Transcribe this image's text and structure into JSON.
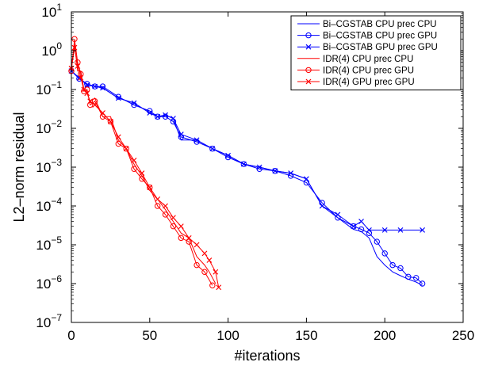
{
  "chart_data": {
    "type": "line",
    "title": "",
    "xlabel": "#iterations",
    "ylabel": "L2–norm residual",
    "xlim": [
      0,
      250
    ],
    "ylim": [
      1e-07,
      10
    ],
    "yscale": "log",
    "x_ticks": [
      "0",
      "50",
      "100",
      "150",
      "200",
      "250"
    ],
    "y_ticks": [
      {
        "base": "10",
        "exp": "1"
      },
      {
        "base": "10",
        "exp": "0"
      },
      {
        "base": "10",
        "exp": "−1"
      },
      {
        "base": "10",
        "exp": "−2"
      },
      {
        "base": "10",
        "exp": "−3"
      },
      {
        "base": "10",
        "exp": "−4"
      },
      {
        "base": "10",
        "exp": "−5"
      },
      {
        "base": "10",
        "exp": "−6"
      },
      {
        "base": "10",
        "exp": "−7"
      }
    ],
    "grid": false,
    "legend_position": "top-right",
    "series": [
      {
        "name": "Bi–CGSTAB CPU prec CPU",
        "color": "#0000ff",
        "marker": "none",
        "x": [
          0,
          5,
          10,
          15,
          20,
          30,
          40,
          50,
          55,
          60,
          65,
          70,
          80,
          90,
          100,
          110,
          120,
          130,
          140,
          150,
          160,
          170,
          180,
          185,
          190,
          195,
          200,
          205,
          210,
          215,
          220,
          224
        ],
        "y": [
          0.3,
          0.2,
          0.13,
          0.12,
          0.11,
          0.06,
          0.045,
          0.025,
          0.02,
          0.022,
          0.018,
          0.005,
          0.005,
          0.003,
          0.002,
          0.0012,
          0.001,
          0.0008,
          0.0007,
          0.0005,
          0.0001,
          5e-05,
          2.5e-05,
          2.2e-05,
          1.5e-05,
          5e-06,
          3e-06,
          2e-06,
          1.6e-06,
          1.3e-06,
          1.1e-06,
          9e-07
        ]
      },
      {
        "name": "Bi–CGSTAB CPU prec GPU",
        "color": "#0000ff",
        "marker": "circle",
        "x": [
          0,
          5,
          10,
          15,
          20,
          30,
          40,
          50,
          55,
          60,
          65,
          70,
          80,
          90,
          100,
          110,
          120,
          130,
          140,
          150,
          160,
          170,
          180,
          185,
          190,
          195,
          200,
          205,
          210,
          215,
          220,
          224
        ],
        "y": [
          0.3,
          0.19,
          0.14,
          0.12,
          0.12,
          0.065,
          0.04,
          0.028,
          0.02,
          0.02,
          0.015,
          0.006,
          0.0045,
          0.003,
          0.0018,
          0.0012,
          0.0009,
          0.0008,
          0.0006,
          0.0004,
          0.00012,
          5e-05,
          3e-05,
          2.5e-05,
          2e-05,
          1.2e-05,
          6e-06,
          3e-06,
          2.5e-06,
          1.5e-06,
          1.4e-06,
          1e-06
        ]
      },
      {
        "name": "Bi–CGSTAB GPU prec GPU",
        "color": "#0000ff",
        "marker": "x",
        "x": [
          0,
          5,
          10,
          15,
          20,
          30,
          40,
          50,
          55,
          60,
          65,
          70,
          80,
          90,
          100,
          110,
          120,
          130,
          140,
          150,
          160,
          170,
          180,
          185,
          190,
          200,
          210,
          224
        ],
        "y": [
          0.3,
          0.2,
          0.13,
          0.12,
          0.11,
          0.06,
          0.045,
          0.025,
          0.02,
          0.022,
          0.018,
          0.007,
          0.005,
          0.003,
          0.002,
          0.0012,
          0.001,
          0.0008,
          0.0007,
          0.0005,
          0.0001,
          6e-05,
          3e-05,
          4e-05,
          2.4e-05,
          2.4e-05,
          2.4e-05,
          2.4e-05
        ]
      },
      {
        "name": "IDR(4) CPU prec CPU",
        "color": "#ff0000",
        "marker": "none",
        "x": [
          0,
          2,
          4,
          6,
          8,
          10,
          12,
          15,
          20,
          25,
          30,
          35,
          40,
          45,
          50,
          55,
          60,
          65,
          70,
          75,
          80,
          85,
          88,
          92
        ],
        "y": [
          0.4,
          1.5,
          0.3,
          0.3,
          0.1,
          0.08,
          0.05,
          0.06,
          0.02,
          0.02,
          0.005,
          0.003,
          0.0012,
          0.0006,
          0.00025,
          0.00015,
          8e-05,
          4e-05,
          2e-05,
          1.5e-05,
          5e-06,
          3e-06,
          2e-06,
          1e-06
        ]
      },
      {
        "name": "IDR(4) CPU prec GPU",
        "color": "#ff0000",
        "marker": "circle",
        "x": [
          0,
          2,
          4,
          6,
          8,
          10,
          12,
          15,
          20,
          25,
          30,
          35,
          40,
          45,
          50,
          55,
          60,
          65,
          70,
          75,
          80,
          85,
          90
        ],
        "y": [
          0.3,
          2.0,
          0.5,
          0.25,
          0.09,
          0.1,
          0.04,
          0.05,
          0.02,
          0.015,
          0.004,
          0.003,
          0.0009,
          0.0005,
          0.0003,
          0.0001,
          6e-05,
          3e-05,
          1.5e-05,
          1.2e-05,
          3e-06,
          2e-06,
          9e-07
        ]
      },
      {
        "name": "IDR(4) GPU prec GPU",
        "color": "#ff0000",
        "marker": "x",
        "x": [
          0,
          2,
          4,
          6,
          8,
          10,
          12,
          15,
          20,
          25,
          30,
          35,
          40,
          45,
          50,
          55,
          60,
          65,
          70,
          75,
          80,
          85,
          88,
          92,
          94
        ],
        "y": [
          0.35,
          1.2,
          0.4,
          0.2,
          0.1,
          0.08,
          0.05,
          0.04,
          0.025,
          0.015,
          0.006,
          0.003,
          0.0015,
          0.0007,
          0.0003,
          0.00015,
          0.0001,
          5e-05,
          3e-05,
          1.5e-05,
          1e-05,
          6e-06,
          4e-06,
          2e-06,
          8e-07
        ]
      }
    ]
  }
}
